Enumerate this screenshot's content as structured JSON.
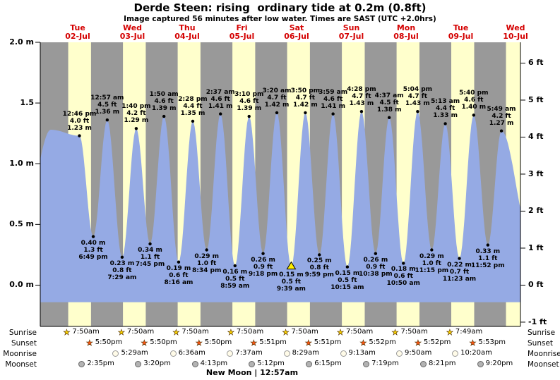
{
  "title": "Derde Steen: rising  ordinary tide at 0.2m (0.8ft)",
  "subtitle": "Image captured 56 minutes after low water. Times are SAST (UTC +2.0hrs)",
  "days": [
    {
      "name": "Tue",
      "date": "02-Jul"
    },
    {
      "name": "Wed",
      "date": "03-Jul"
    },
    {
      "name": "Thu",
      "date": "04-Jul"
    },
    {
      "name": "Fri",
      "date": "05-Jul"
    },
    {
      "name": "Sat",
      "date": "06-Jul"
    },
    {
      "name": "Sun",
      "date": "07-Jul"
    },
    {
      "name": "Mon",
      "date": "08-Jul"
    },
    {
      "name": "Tue",
      "date": "09-Jul"
    },
    {
      "name": "Wed",
      "date": "10-Jul"
    }
  ],
  "y_axis": {
    "left": [
      {
        "label": "2.0 m",
        "m": 2.0
      },
      {
        "label": "1.5",
        "m": 1.5
      },
      {
        "label": "1.0 m",
        "m": 1.0
      },
      {
        "label": "0.5 m",
        "m": 0.5
      },
      {
        "label": "0.0 m",
        "m": 0.0
      }
    ],
    "right": [
      {
        "label": "6 ft",
        "ft": 6
      },
      {
        "label": "5 ft",
        "ft": 5
      },
      {
        "label": "4 ft",
        "ft": 4
      },
      {
        "label": "3 ft",
        "ft": 3
      },
      {
        "label": "2 ft",
        "ft": 2
      },
      {
        "label": "1 ft",
        "ft": 1
      },
      {
        "label": "0 ft",
        "ft": 0
      },
      {
        "label": "-1 ft",
        "ft": -1
      }
    ]
  },
  "chart_data": {
    "type": "area",
    "title": "Derde Steen tide curve 02-Jul to 10-Jul",
    "x_range_days": [
      -0.184,
      8.59
    ],
    "ylim_m": [
      -0.34,
      2.0
    ],
    "fill_base_m": -0.14,
    "tides": [
      {
        "day": 0,
        "type": "high",
        "time": "12:46 pm",
        "height_ft": 4.0,
        "height_m": 1.23
      },
      {
        "day": 0,
        "type": "low",
        "time": "6:49 pm",
        "height_ft": 1.3,
        "height_m": 0.4
      },
      {
        "day": 1,
        "type": "high",
        "time": "12:57 am",
        "height_ft": 4.5,
        "height_m": 1.36
      },
      {
        "day": 1,
        "type": "low",
        "time": "7:29 am",
        "height_ft": 0.8,
        "height_m": 0.23
      },
      {
        "day": 1,
        "type": "high",
        "time": "1:40 pm",
        "height_ft": 4.2,
        "height_m": 1.29
      },
      {
        "day": 1,
        "type": "low",
        "time": "7:45 pm",
        "height_ft": 1.1,
        "height_m": 0.34
      },
      {
        "day": 2,
        "type": "high",
        "time": "1:50 am",
        "height_ft": 4.6,
        "height_m": 1.39
      },
      {
        "day": 2,
        "type": "low",
        "time": "8:16 am",
        "height_ft": 0.6,
        "height_m": 0.19
      },
      {
        "day": 2,
        "type": "high",
        "time": "2:28 pm",
        "height_ft": 4.4,
        "height_m": 1.35
      },
      {
        "day": 2,
        "type": "low",
        "time": "8:34 pm",
        "height_ft": 1.0,
        "height_m": 0.29
      },
      {
        "day": 3,
        "type": "high",
        "time": "2:37 am",
        "height_ft": 4.6,
        "height_m": 1.41
      },
      {
        "day": 3,
        "type": "low",
        "time": "8:59 am",
        "height_ft": 0.5,
        "height_m": 0.16
      },
      {
        "day": 3,
        "type": "high",
        "time": "3:10 pm",
        "height_ft": 4.6,
        "height_m": 1.39
      },
      {
        "day": 3,
        "type": "low",
        "time": "9:18 pm",
        "height_ft": 0.9,
        "height_m": 0.26
      },
      {
        "day": 4,
        "type": "high",
        "time": "3:20 am",
        "height_ft": 4.7,
        "height_m": 1.42
      },
      {
        "day": 4,
        "type": "low",
        "time": "9:39 am",
        "height_ft": 0.5,
        "height_m": 0.15,
        "current": true
      },
      {
        "day": 4,
        "type": "high",
        "time": "3:50 pm",
        "height_ft": 4.7,
        "height_m": 1.42
      },
      {
        "day": 4,
        "type": "low",
        "time": "9:59 pm",
        "height_ft": 0.8,
        "height_m": 0.25
      },
      {
        "day": 5,
        "type": "high",
        "time": "3:59 am",
        "height_ft": 4.6,
        "height_m": 1.41
      },
      {
        "day": 5,
        "type": "low",
        "time": "10:15 am",
        "height_ft": 0.5,
        "height_m": 0.15
      },
      {
        "day": 5,
        "type": "high",
        "time": "4:28 pm",
        "height_ft": 4.7,
        "height_m": 1.43
      },
      {
        "day": 5,
        "type": "low",
        "time": "10:38 pm",
        "height_ft": 0.9,
        "height_m": 0.26
      },
      {
        "day": 6,
        "type": "high",
        "time": "4:37 am",
        "height_ft": 4.5,
        "height_m": 1.38
      },
      {
        "day": 6,
        "type": "low",
        "time": "10:50 am",
        "height_ft": 0.6,
        "height_m": 0.18
      },
      {
        "day": 6,
        "type": "high",
        "time": "5:04 pm",
        "height_ft": 4.7,
        "height_m": 1.43
      },
      {
        "day": 6,
        "type": "low",
        "time": "11:15 pm",
        "height_ft": 1.0,
        "height_m": 0.29
      },
      {
        "day": 7,
        "type": "high",
        "time": "5:13 am",
        "height_ft": 4.4,
        "height_m": 1.33
      },
      {
        "day": 7,
        "type": "low",
        "time": "11:23 am",
        "height_ft": 0.7,
        "height_m": 0.22
      },
      {
        "day": 7,
        "type": "high",
        "time": "5:40 pm",
        "height_ft": 4.6,
        "height_m": 1.4
      },
      {
        "day": 7,
        "type": "low",
        "time": "11:52 pm",
        "height_ft": 1.1,
        "height_m": 0.33
      },
      {
        "day": 8,
        "type": "high",
        "time": "5:49 am",
        "height_ft": 4.2,
        "height_m": 1.27
      }
    ]
  },
  "astronomy": {
    "rows": [
      {
        "key": "sunrise",
        "label": "Sunrise",
        "icon": "sunrise-star-icon",
        "icon_color": "#ffd700",
        "icon_border": "#886600",
        "entries": [
          {
            "day": 0,
            "time": "7:50am"
          },
          {
            "day": 1,
            "time": "7:50am"
          },
          {
            "day": 2,
            "time": "7:50am"
          },
          {
            "day": 3,
            "time": "7:50am"
          },
          {
            "day": 4,
            "time": "7:50am"
          },
          {
            "day": 5,
            "time": "7:50am"
          },
          {
            "day": 6,
            "time": "7:50am"
          },
          {
            "day": 7,
            "time": "7:49am"
          }
        ]
      },
      {
        "key": "sunset",
        "label": "Sunset",
        "icon": "sunset-star-icon",
        "icon_color": "#ff5511",
        "icon_border": "#882200",
        "entries": [
          {
            "day": 0,
            "time": "5:50pm"
          },
          {
            "day": 1,
            "time": "5:50pm"
          },
          {
            "day": 2,
            "time": "5:50pm"
          },
          {
            "day": 3,
            "time": "5:51pm"
          },
          {
            "day": 4,
            "time": "5:51pm"
          },
          {
            "day": 5,
            "time": "5:52pm"
          },
          {
            "day": 6,
            "time": "5:52pm"
          },
          {
            "day": 7,
            "time": "5:53pm"
          }
        ]
      },
      {
        "key": "moonrise",
        "label": "Moonrise",
        "icon": "moonrise-icon",
        "icon_color": "#fffbe8",
        "icon_border": "#999999",
        "entries": [
          {
            "day": 1,
            "time": "5:29am"
          },
          {
            "day": 2,
            "time": "6:36am"
          },
          {
            "day": 3,
            "time": "7:37am"
          },
          {
            "day": 4,
            "time": "8:29am"
          },
          {
            "day": 5,
            "time": "9:13am"
          },
          {
            "day": 6,
            "time": "9:50am"
          },
          {
            "day": 7,
            "time": "10:20am"
          }
        ]
      },
      {
        "key": "moonset",
        "label": "Moonset",
        "icon": "moonset-icon",
        "icon_color": "#b3b3b3",
        "icon_border": "#666666",
        "entries": [
          {
            "day": 0,
            "time": "2:35pm"
          },
          {
            "day": 1,
            "time": "3:20pm"
          },
          {
            "day": 2,
            "time": "4:13pm"
          },
          {
            "day": 3,
            "time": "5:12pm"
          },
          {
            "day": 4,
            "time": "6:15pm"
          },
          {
            "day": 5,
            "time": "7:19pm"
          },
          {
            "day": 6,
            "time": "8:21pm"
          },
          {
            "day": 7,
            "time": "9:20pm"
          }
        ]
      }
    ]
  },
  "footer": {
    "text": "New Moon | 12:57am"
  },
  "colors": {
    "daylight": "#ffffcc",
    "night": "#999999",
    "tide_fill": "#95aae4",
    "current_marker": "#ffee00",
    "day_label": "#d40000",
    "annotation": "#000000"
  }
}
